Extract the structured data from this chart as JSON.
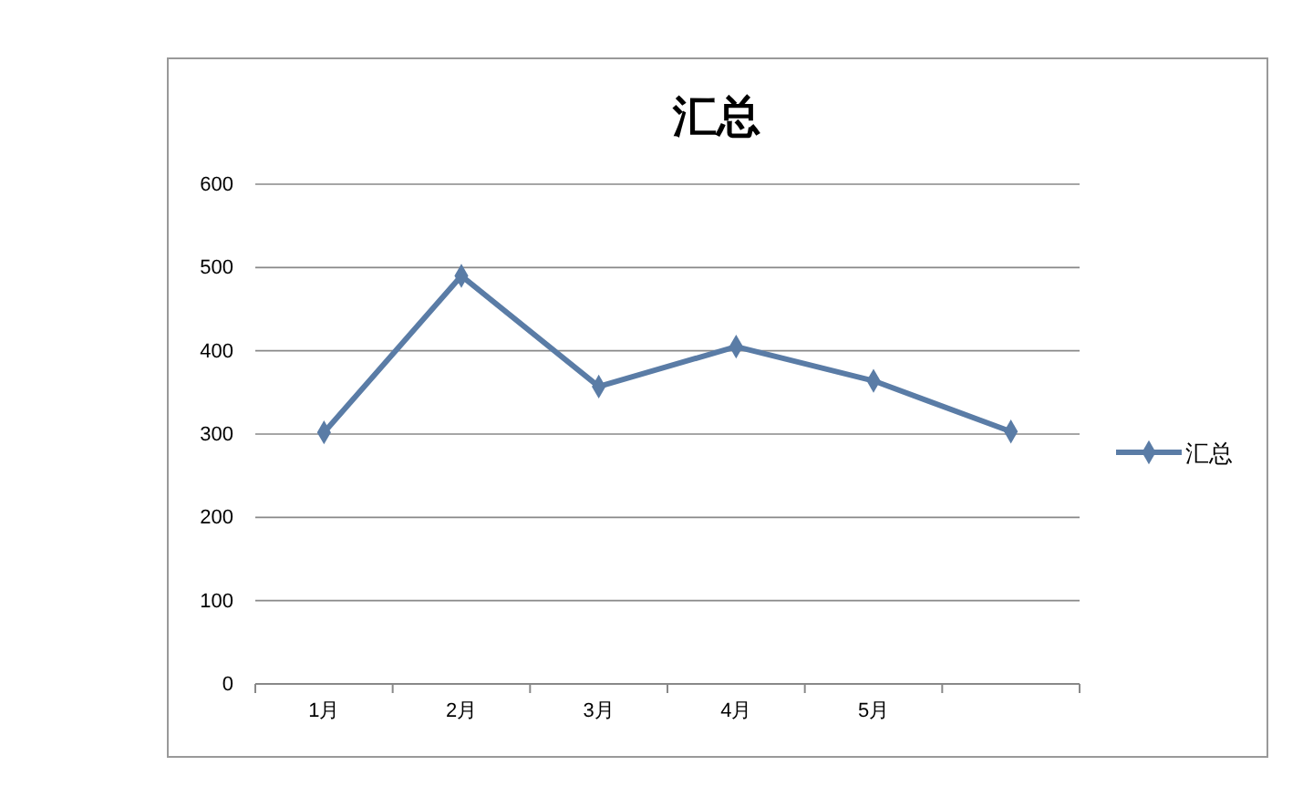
{
  "chart_data": {
    "type": "line",
    "title": "汇总",
    "categories": [
      "1月",
      "2月",
      "3月",
      "4月",
      "5月",
      null
    ],
    "series": [
      {
        "name": "汇总",
        "color": "#5a7ca6",
        "values": [
          302,
          490,
          357,
          405,
          364,
          303
        ]
      }
    ],
    "ylim": [
      0,
      600
    ],
    "yticks": [
      0,
      100,
      200,
      300,
      400,
      500,
      600
    ],
    "grid": "y",
    "legend": "right",
    "marker": "diamond",
    "line_style": "solid"
  }
}
